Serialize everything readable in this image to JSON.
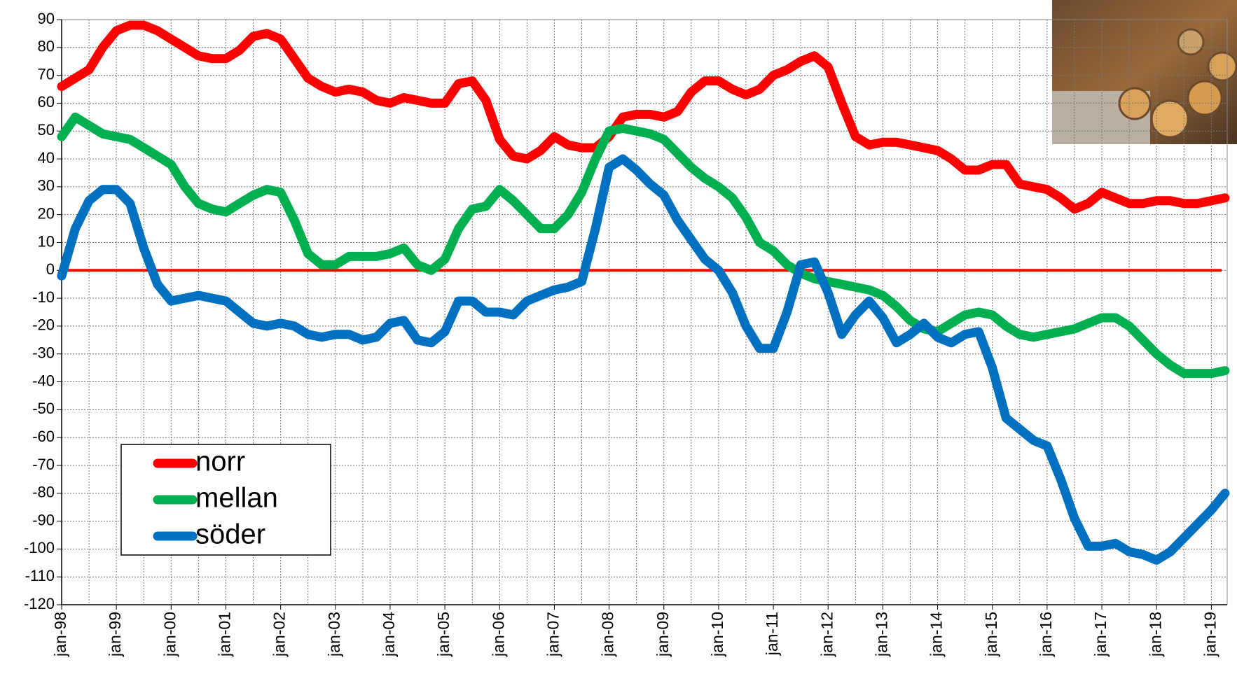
{
  "chart_data": {
    "type": "line",
    "categories": [
      "jan-98",
      null,
      null,
      null,
      "jan-99",
      null,
      null,
      null,
      "jan-00",
      null,
      null,
      null,
      "jan-01",
      null,
      null,
      null,
      "jan-02",
      null,
      null,
      null,
      "jan-03",
      null,
      null,
      null,
      "jan-04",
      null,
      null,
      null,
      "jan-05",
      null,
      null,
      null,
      "jan-06",
      null,
      null,
      null,
      "jan-07",
      null,
      null,
      null,
      "jan-08",
      null,
      null,
      null,
      "jan-09",
      null,
      null,
      null,
      "jan-10",
      null,
      null,
      null,
      "jan-11",
      null,
      null,
      null,
      "jan-12",
      null,
      null,
      null,
      "jan-13",
      null,
      null,
      null,
      "jan-14",
      null,
      null,
      null,
      "jan-15",
      null,
      null,
      null,
      "jan-16",
      null,
      null,
      null,
      "jan-17",
      null,
      null,
      null,
      "jan-18",
      null,
      null,
      null,
      "jan-19",
      null
    ],
    "series": [
      {
        "name": "norr",
        "color": "#ff0000",
        "values": [
          66,
          69,
          72,
          80,
          86,
          88,
          88,
          86,
          83,
          80,
          77,
          76,
          76,
          79,
          84,
          85,
          83,
          76,
          69,
          66,
          64,
          65,
          64,
          61,
          60,
          62,
          61,
          60,
          60,
          67,
          68,
          61,
          47,
          41,
          40,
          43,
          48,
          45,
          44,
          44,
          48,
          55,
          56,
          56,
          55,
          57,
          64,
          68,
          68,
          65,
          63,
          65,
          70,
          72,
          75,
          77,
          73,
          60,
          48,
          45,
          46,
          46,
          45,
          44,
          43,
          40,
          36,
          36,
          38,
          38,
          31,
          30,
          29,
          26,
          22,
          24,
          28,
          26,
          24,
          24,
          25,
          25,
          24,
          24,
          25,
          26
        ]
      },
      {
        "name": "mellan",
        "color": "#00b050",
        "values": [
          48,
          55,
          52,
          49,
          48,
          47,
          44,
          41,
          38,
          30,
          24,
          22,
          21,
          24,
          27,
          29,
          28,
          18,
          6,
          2,
          2,
          5,
          5,
          5,
          6,
          8,
          2,
          0,
          4,
          15,
          22,
          23,
          29,
          25,
          20,
          15,
          15,
          20,
          28,
          40,
          50,
          51,
          50,
          49,
          47,
          42,
          37,
          33,
          30,
          26,
          19,
          10,
          7,
          2,
          -1,
          -3,
          -4,
          -5,
          -6,
          -7,
          -9,
          -13,
          -18,
          -21,
          -22,
          -19,
          -16,
          -15,
          -16,
          -20,
          -23,
          -24,
          -23,
          -22,
          -21,
          -19,
          -17,
          -17,
          -20,
          -25,
          -30,
          -34,
          -37,
          -37,
          -37,
          -36
        ]
      },
      {
        "name": "söder",
        "color": "#0070c0",
        "values": [
          -2,
          15,
          25,
          29,
          29,
          24,
          8,
          -5,
          -11,
          -10,
          -9,
          -10,
          -11,
          -15,
          -19,
          -20,
          -19,
          -20,
          -23,
          -24,
          -23,
          -23,
          -25,
          -24,
          -19,
          -18,
          -25,
          -26,
          -22,
          -11,
          -11,
          -15,
          -15,
          -16,
          -11,
          -9,
          -7,
          -6,
          -4,
          15,
          37,
          40,
          36,
          31,
          27,
          18,
          11,
          4,
          0,
          -8,
          -20,
          -28,
          -28,
          -15,
          2,
          3,
          -8,
          -23,
          -16,
          -11,
          -17,
          -26,
          -23,
          -19,
          -24,
          -26,
          -23,
          -22,
          -35,
          -53,
          -57,
          -61,
          -63,
          -75,
          -89,
          -99,
          -99,
          -98,
          -101,
          -102,
          -104,
          -101,
          -96,
          -91,
          -86,
          -80
        ]
      }
    ],
    "ylim": [
      -120,
      90
    ],
    "yticks": [
      -120,
      -110,
      -100,
      -90,
      -80,
      -70,
      -60,
      -50,
      -40,
      -30,
      -20,
      -10,
      0,
      10,
      20,
      30,
      40,
      50,
      60,
      70,
      80,
      90
    ],
    "grid": true,
    "legend": "lower left"
  }
}
